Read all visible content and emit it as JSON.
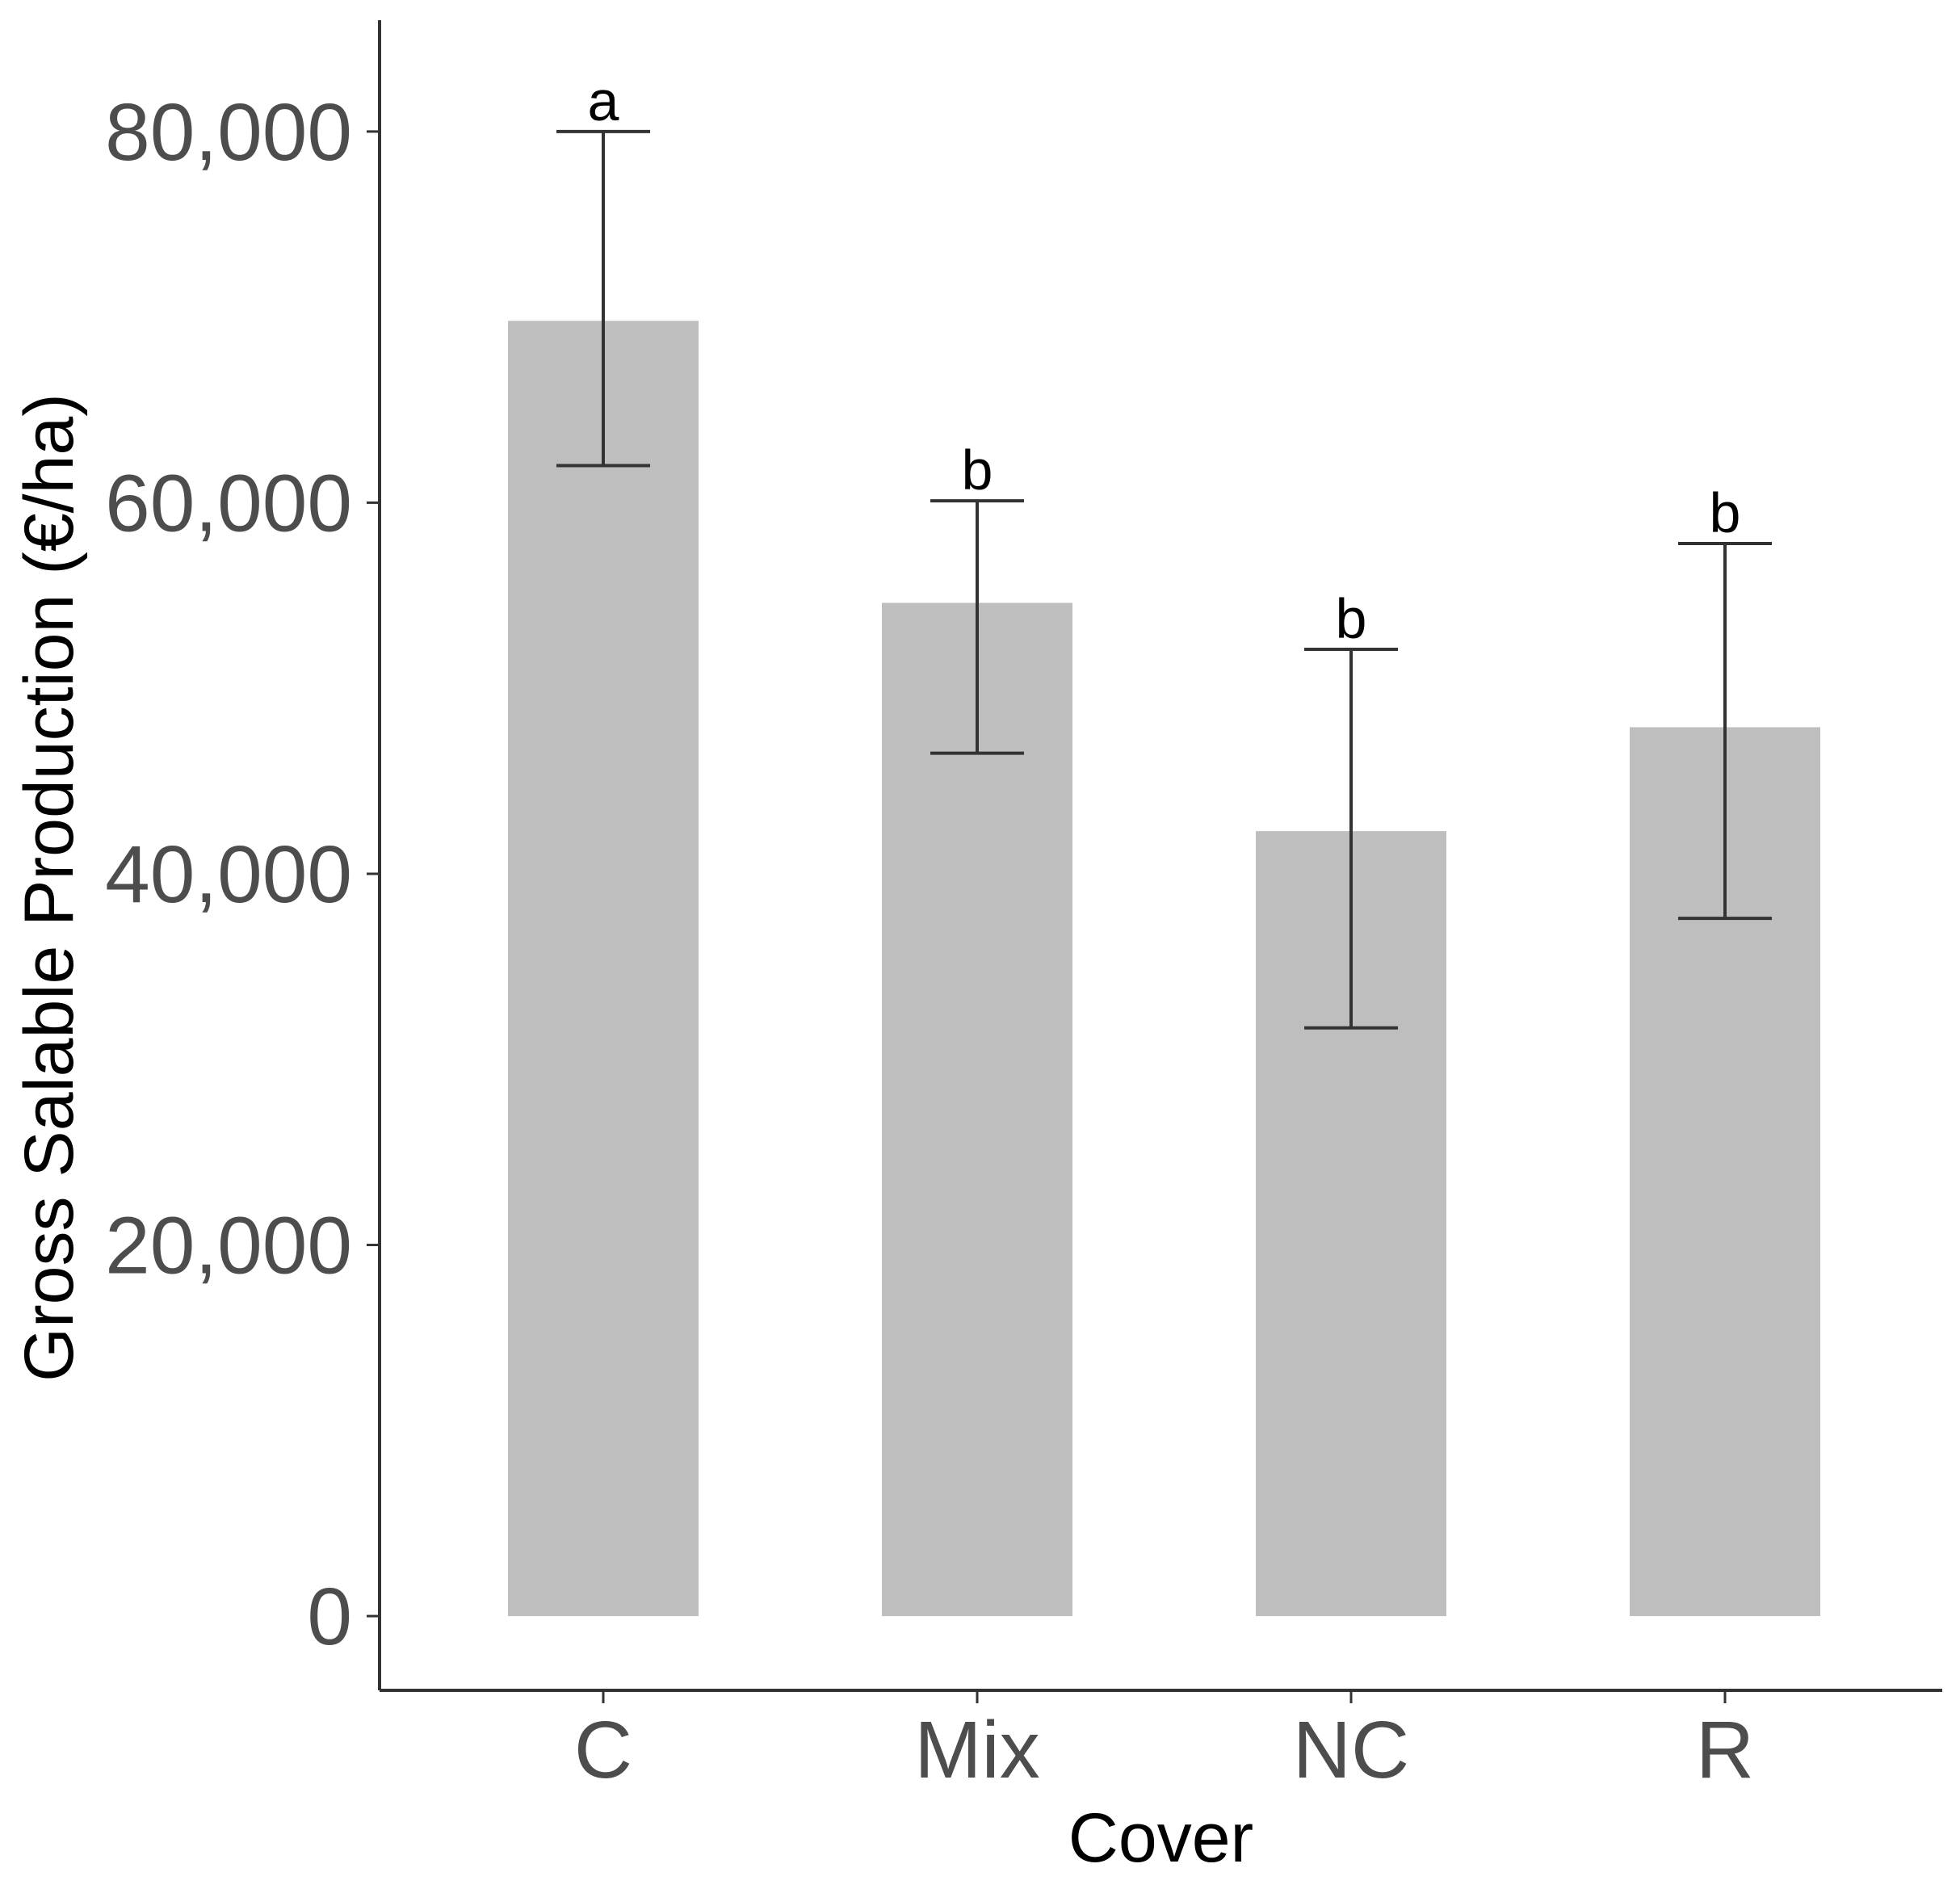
{
  "chart_data": {
    "type": "bar",
    "xlabel": "Cover",
    "ylabel": "Gross Salable Production (€/ha)",
    "categories": [
      "C",
      "Mix",
      "NC",
      "R"
    ],
    "values": [
      69800,
      54600,
      42300,
      47900
    ],
    "error_low": [
      62000,
      46500,
      31700,
      37600
    ],
    "error_high": [
      80000,
      60100,
      52100,
      57800
    ],
    "significance_letters": [
      "a",
      "b",
      "b",
      "b"
    ],
    "ylim": [
      -4000,
      86000
    ],
    "yticks": [
      0,
      20000,
      40000,
      60000,
      80000
    ],
    "ytick_labels": [
      "0",
      "20,000",
      "40,000",
      "60,000",
      "80,000"
    ],
    "grid": false,
    "legend": "none",
    "colors": {
      "bar": "#bebebe",
      "axis": "#333333",
      "error_bar": "#333333",
      "tick_label": "#4d4d4d"
    }
  }
}
